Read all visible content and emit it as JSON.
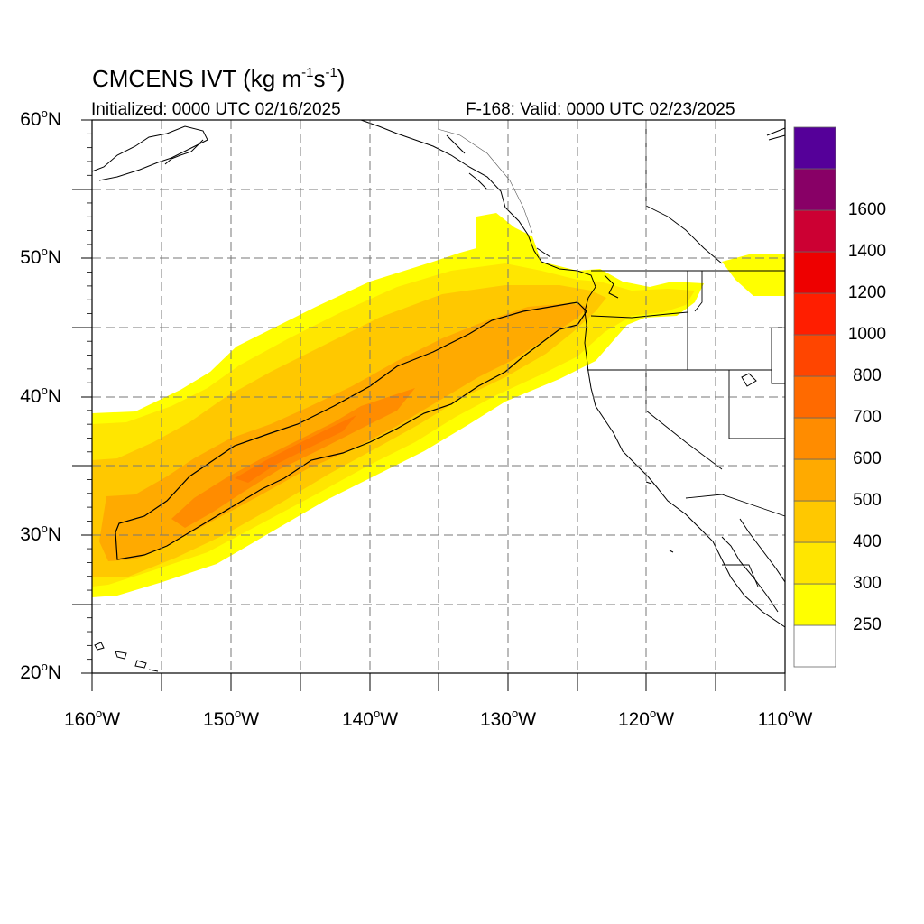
{
  "title": {
    "main": "CMCENS IVT (kg m",
    "exp1": "-1",
    "mid": "s",
    "exp2": "-1",
    "end": ")"
  },
  "initialized": "Initialized: 0000 UTC 02/16/2025",
  "valid": "F-168: Valid: 0000 UTC 02/23/2025",
  "lat_labels": [
    {
      "text": "60",
      "hemi": "N"
    },
    {
      "text": "50",
      "hemi": "N"
    },
    {
      "text": "40",
      "hemi": "N"
    },
    {
      "text": "30",
      "hemi": "N"
    },
    {
      "text": "20",
      "hemi": "N"
    }
  ],
  "lon_labels": [
    {
      "text": "160",
      "hemi": "W"
    },
    {
      "text": "150",
      "hemi": "W"
    },
    {
      "text": "140",
      "hemi": "W"
    },
    {
      "text": "130",
      "hemi": "W"
    },
    {
      "text": "120",
      "hemi": "W"
    },
    {
      "text": "110",
      "hemi": "W"
    }
  ],
  "colorbar": {
    "colors": [
      "#ffffff",
      "#ffff00",
      "#ffe600",
      "#ffc800",
      "#ffaa00",
      "#ff8c00",
      "#ff6a00",
      "#ff4500",
      "#ff1e00",
      "#ee0000",
      "#cc0033",
      "#880066",
      "#550099"
    ],
    "labels": [
      "250",
      "300",
      "400",
      "500",
      "600",
      "700",
      "800",
      "1000",
      "1200",
      "1400",
      "1600"
    ]
  },
  "map_extent": {
    "lon": [
      -160,
      -110
    ],
    "lat": [
      20,
      60
    ]
  },
  "ivt_field": {
    "ridge_start": {
      "lon": -159.5,
      "lat": 28.5
    },
    "ridge_end": {
      "lon": -124,
      "lat": 46.5
    },
    "peak_center": {
      "lon": -147,
      "lat": 34.5
    },
    "max_band": "600-700",
    "contour_level": "500"
  }
}
